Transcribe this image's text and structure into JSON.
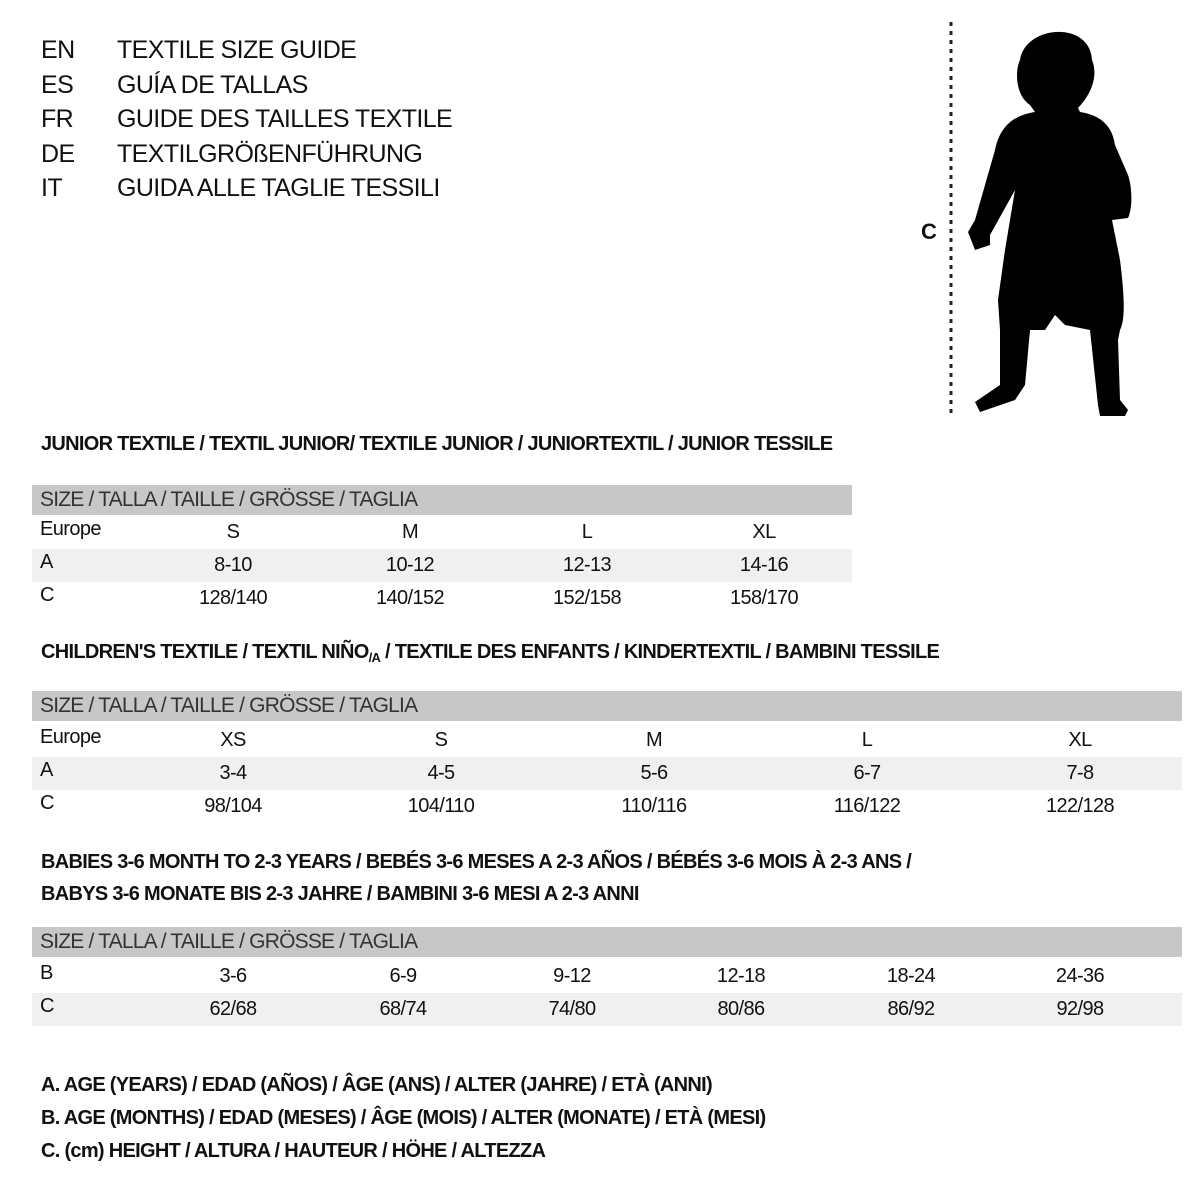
{
  "languages": [
    {
      "code": "EN",
      "title": "TEXTILE SIZE GUIDE"
    },
    {
      "code": "ES",
      "title": "GUÍA DE TALLAS"
    },
    {
      "code": "FR",
      "title": "GUIDE DES TAILLES TEXTILE"
    },
    {
      "code": "DE",
      "title": "TEXTILGRÖßENFÜHRUNG"
    },
    {
      "code": "IT",
      "title": "GUIDA ALLE TAGLIE TESSILI"
    }
  ],
  "figure": {
    "measure_label": "C",
    "icon": "child-silhouette-icon"
  },
  "size_header": "SIZE / TALLA / TAILLE / GRÖSSE / TAGLIA",
  "junior": {
    "title": "JUNIOR TEXTILE / TEXTIL JUNIOR/ TEXTILE JUNIOR / JUNIORTEXTIL / JUNIOR TESSILE",
    "rows": [
      {
        "label": "Europe",
        "values": [
          "S",
          "M",
          "L",
          "XL"
        ]
      },
      {
        "label": "A",
        "values": [
          "8-10",
          "10-12",
          "12-13",
          "14-16"
        ]
      },
      {
        "label": "C",
        "values": [
          "128/140",
          "140/152",
          "152/158",
          "158/170"
        ]
      }
    ]
  },
  "children": {
    "title_a": "CHILDREN'S TEXTILE / TEXTIL NIÑO",
    "title_sub": "/A",
    "title_b": " / TEXTILE DES ENFANTS / KINDERTEXTIL / BAMBINI TESSILE",
    "rows": [
      {
        "label": "Europe",
        "values": [
          "XS",
          "S",
          "M",
          "L",
          "XL"
        ]
      },
      {
        "label": "A",
        "values": [
          "3-4",
          "4-5",
          "5-6",
          "6-7",
          "7-8"
        ]
      },
      {
        "label": "C",
        "values": [
          "98/104",
          "104/110",
          "110/116",
          "116/122",
          "122/128"
        ]
      }
    ]
  },
  "babies": {
    "title_line1": "BABIES 3-6 MONTH TO 2-3 YEARS / BEBÉS 3-6 MESES A 2-3 AÑOS / BÉBÉS 3-6 MOIS À 2-3 ANS /",
    "title_line2": "BABYS 3-6 MONATE BIS 2-3 JAHRE / BAMBINI 3-6 MESI A 2-3 ANNI",
    "rows": [
      {
        "label": "B",
        "values": [
          "3-6",
          "6-9",
          "9-12",
          "12-18",
          "18-24",
          "24-36"
        ]
      },
      {
        "label": "C",
        "values": [
          "62/68",
          "68/74",
          "74/80",
          "80/86",
          "86/92",
          "92/98"
        ]
      }
    ]
  },
  "legend": [
    "A. AGE (YEARS) / EDAD (AÑOS) / ÂGE (ANS) / ALTER (JAHRE) / ETÀ (ANNI)",
    "B. AGE (MONTHS) / EDAD (MESES) / ÂGE (MOIS) / ALTER (MONATE) / ETÀ (MESI)",
    "C. (cm) HEIGHT / ALTURA / HAUTEUR / HÖHE / ALTEZZA"
  ],
  "colors": {
    "header_bg": "#c7c7c7",
    "stripe_bg": "#f0f0f0",
    "text": "#111111"
  }
}
